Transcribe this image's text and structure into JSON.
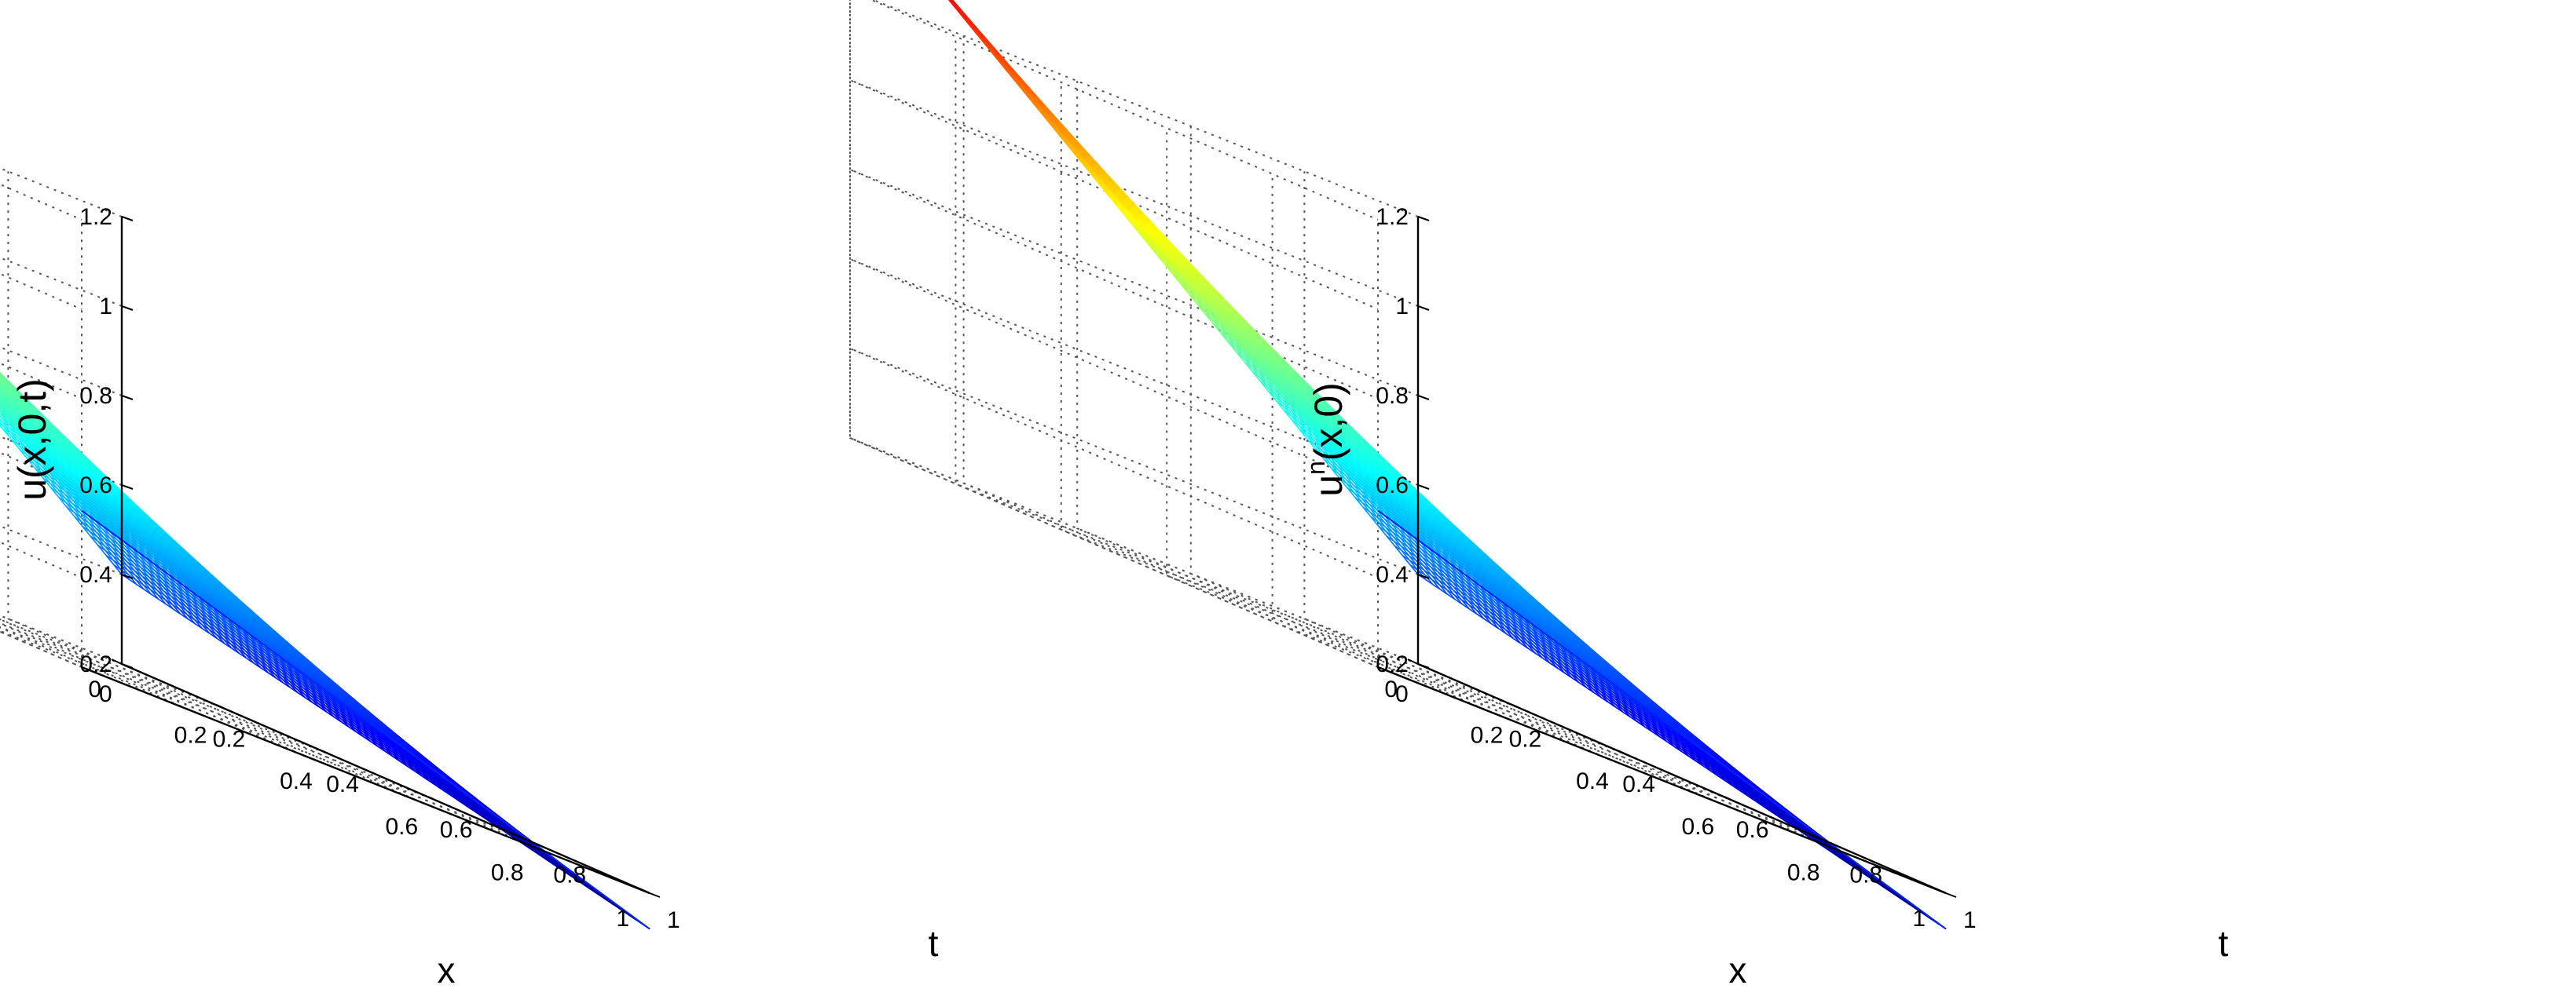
{
  "chart_data": [
    {
      "type": "surface",
      "zlabel": "u(x,0,t)",
      "xlabel": "x",
      "ylabel": "t",
      "xlim": [
        0,
        1
      ],
      "tlim": [
        0,
        1
      ],
      "zlim": [
        0.2,
        1.2
      ],
      "x_ticks": [
        "0",
        "0.2",
        "0.4",
        "0.6",
        "0.8",
        "1"
      ],
      "t_ticks": [
        "0",
        "0.2",
        "0.4",
        "0.6",
        "0.8",
        "1"
      ],
      "z_ticks": [
        "0.2",
        "0.4",
        "0.6",
        "0.8",
        "1",
        "1.2"
      ],
      "grid": true,
      "colormap": "jet",
      "corner_values": {
        "x0_t0": 1.45,
        "x1_t0": 0.55,
        "x0_t1": 0.4,
        "x1_t1": 0.12
      },
      "mesh_lines": 72
    },
    {
      "type": "surface",
      "zlabel_base": "u",
      "zlabel_sup": "n",
      "zlabel_rest": "(x,0)",
      "xlabel": "x",
      "ylabel": "t",
      "xlim": [
        0,
        1
      ],
      "tlim": [
        0,
        1
      ],
      "zlim": [
        0.2,
        1.2
      ],
      "x_ticks": [
        "0",
        "0.2",
        "0.4",
        "0.6",
        "0.8",
        "1"
      ],
      "t_ticks": [
        "0",
        "0.2",
        "0.4",
        "0.6",
        "0.8",
        "1"
      ],
      "z_ticks": [
        "0.2",
        "0.4",
        "0.6",
        "0.8",
        "1",
        "1.2"
      ],
      "grid": true,
      "colormap": "jet",
      "corner_values": {
        "x0_t0": 1.45,
        "x1_t0": 0.55,
        "x0_t1": 0.4,
        "x1_t1": 0.12
      },
      "mesh_lines": 72
    }
  ]
}
